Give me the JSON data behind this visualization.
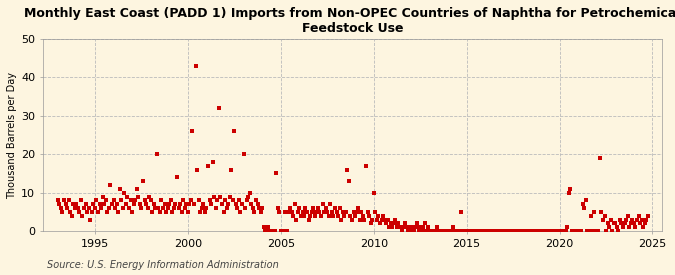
{
  "title": "Monthly East Coast (PADD 1) Imports from Non-OPEC Countries of Naphtha for Petrochemical\nFeedstock Use",
  "ylabel": "Thousand Barrels per Day",
  "source": "Source: U.S. Energy Information Administration",
  "background_color": "#fdf5e0",
  "marker_color": "#cc0000",
  "xlim": [
    1992.2,
    2025.5
  ],
  "ylim": [
    0,
    50
  ],
  "yticks": [
    0,
    10,
    20,
    30,
    40,
    50
  ],
  "xticks": [
    1995,
    2000,
    2005,
    2010,
    2015,
    2020,
    2025
  ],
  "data": [
    [
      1993.0,
      8
    ],
    [
      1993.08,
      7
    ],
    [
      1993.17,
      6
    ],
    [
      1993.25,
      5
    ],
    [
      1993.33,
      8
    ],
    [
      1993.42,
      7
    ],
    [
      1993.5,
      6
    ],
    [
      1993.58,
      8
    ],
    [
      1993.67,
      5
    ],
    [
      1993.75,
      4
    ],
    [
      1993.83,
      7
    ],
    [
      1993.92,
      6
    ],
    [
      1994.0,
      7
    ],
    [
      1994.08,
      6
    ],
    [
      1994.17,
      5
    ],
    [
      1994.25,
      8
    ],
    [
      1994.33,
      4
    ],
    [
      1994.42,
      6
    ],
    [
      1994.5,
      7
    ],
    [
      1994.58,
      5
    ],
    [
      1994.67,
      6
    ],
    [
      1994.75,
      3
    ],
    [
      1994.83,
      5
    ],
    [
      1994.92,
      7
    ],
    [
      1995.0,
      6
    ],
    [
      1995.08,
      8
    ],
    [
      1995.17,
      5
    ],
    [
      1995.25,
      7
    ],
    [
      1995.33,
      6
    ],
    [
      1995.42,
      9
    ],
    [
      1995.5,
      7
    ],
    [
      1995.58,
      8
    ],
    [
      1995.67,
      5
    ],
    [
      1995.75,
      6
    ],
    [
      1995.83,
      12
    ],
    [
      1995.92,
      7
    ],
    [
      1996.0,
      8
    ],
    [
      1996.08,
      6
    ],
    [
      1996.17,
      7
    ],
    [
      1996.25,
      5
    ],
    [
      1996.33,
      11
    ],
    [
      1996.42,
      8
    ],
    [
      1996.5,
      6
    ],
    [
      1996.58,
      10
    ],
    [
      1996.67,
      7
    ],
    [
      1996.75,
      9
    ],
    [
      1996.83,
      6
    ],
    [
      1996.92,
      8
    ],
    [
      1997.0,
      5
    ],
    [
      1997.08,
      7
    ],
    [
      1997.17,
      8
    ],
    [
      1997.25,
      11
    ],
    [
      1997.33,
      9
    ],
    [
      1997.42,
      7
    ],
    [
      1997.5,
      6
    ],
    [
      1997.58,
      13
    ],
    [
      1997.67,
      8
    ],
    [
      1997.75,
      7
    ],
    [
      1997.83,
      6
    ],
    [
      1997.92,
      9
    ],
    [
      1998.0,
      8
    ],
    [
      1998.08,
      5
    ],
    [
      1998.17,
      7
    ],
    [
      1998.25,
      6
    ],
    [
      1998.33,
      20
    ],
    [
      1998.42,
      6
    ],
    [
      1998.5,
      5
    ],
    [
      1998.58,
      8
    ],
    [
      1998.67,
      6
    ],
    [
      1998.75,
      7
    ],
    [
      1998.83,
      5
    ],
    [
      1998.92,
      6
    ],
    [
      1999.0,
      7
    ],
    [
      1999.08,
      8
    ],
    [
      1999.17,
      5
    ],
    [
      1999.25,
      6
    ],
    [
      1999.33,
      7
    ],
    [
      1999.42,
      14
    ],
    [
      1999.5,
      6
    ],
    [
      1999.58,
      7
    ],
    [
      1999.67,
      5
    ],
    [
      1999.75,
      8
    ],
    [
      1999.83,
      6
    ],
    [
      1999.92,
      7
    ],
    [
      2000.0,
      5
    ],
    [
      2000.08,
      7
    ],
    [
      2000.17,
      8
    ],
    [
      2000.25,
      26
    ],
    [
      2000.33,
      7
    ],
    [
      2000.42,
      43
    ],
    [
      2000.5,
      16
    ],
    [
      2000.58,
      8
    ],
    [
      2000.67,
      5
    ],
    [
      2000.75,
      6
    ],
    [
      2000.83,
      7
    ],
    [
      2000.92,
      5
    ],
    [
      2001.0,
      6
    ],
    [
      2001.08,
      17
    ],
    [
      2001.17,
      8
    ],
    [
      2001.25,
      7
    ],
    [
      2001.33,
      18
    ],
    [
      2001.42,
      9
    ],
    [
      2001.5,
      6
    ],
    [
      2001.58,
      8
    ],
    [
      2001.67,
      32
    ],
    [
      2001.75,
      9
    ],
    [
      2001.83,
      7
    ],
    [
      2001.92,
      5
    ],
    [
      2002.0,
      8
    ],
    [
      2002.08,
      6
    ],
    [
      2002.17,
      7
    ],
    [
      2002.25,
      9
    ],
    [
      2002.33,
      16
    ],
    [
      2002.42,
      8
    ],
    [
      2002.5,
      26
    ],
    [
      2002.58,
      7
    ],
    [
      2002.67,
      6
    ],
    [
      2002.75,
      8
    ],
    [
      2002.83,
      5
    ],
    [
      2002.92,
      7
    ],
    [
      2003.0,
      20
    ],
    [
      2003.08,
      6
    ],
    [
      2003.17,
      8
    ],
    [
      2003.25,
      9
    ],
    [
      2003.33,
      10
    ],
    [
      2003.42,
      7
    ],
    [
      2003.5,
      6
    ],
    [
      2003.58,
      5
    ],
    [
      2003.67,
      8
    ],
    [
      2003.75,
      7
    ],
    [
      2003.83,
      6
    ],
    [
      2003.92,
      5
    ],
    [
      2004.0,
      6
    ],
    [
      2004.08,
      1
    ],
    [
      2004.17,
      0
    ],
    [
      2004.25,
      0
    ],
    [
      2004.33,
      1
    ],
    [
      2004.42,
      0
    ],
    [
      2004.5,
      0
    ],
    [
      2004.58,
      0
    ],
    [
      2004.67,
      0
    ],
    [
      2004.75,
      15
    ],
    [
      2004.83,
      6
    ],
    [
      2004.92,
      5
    ],
    [
      2005.0,
      0
    ],
    [
      2005.08,
      0
    ],
    [
      2005.17,
      0
    ],
    [
      2005.25,
      5
    ],
    [
      2005.33,
      0
    ],
    [
      2005.42,
      5
    ],
    [
      2005.5,
      6
    ],
    [
      2005.58,
      5
    ],
    [
      2005.67,
      4
    ],
    [
      2005.75,
      7
    ],
    [
      2005.83,
      3
    ],
    [
      2005.92,
      5
    ],
    [
      2006.0,
      6
    ],
    [
      2006.08,
      4
    ],
    [
      2006.17,
      5
    ],
    [
      2006.25,
      4
    ],
    [
      2006.33,
      6
    ],
    [
      2006.42,
      5
    ],
    [
      2006.5,
      3
    ],
    [
      2006.58,
      4
    ],
    [
      2006.67,
      5
    ],
    [
      2006.75,
      6
    ],
    [
      2006.83,
      4
    ],
    [
      2006.92,
      5
    ],
    [
      2007.0,
      6
    ],
    [
      2007.08,
      5
    ],
    [
      2007.17,
      4
    ],
    [
      2007.25,
      7
    ],
    [
      2007.33,
      5
    ],
    [
      2007.42,
      6
    ],
    [
      2007.5,
      5
    ],
    [
      2007.58,
      4
    ],
    [
      2007.67,
      7
    ],
    [
      2007.75,
      5
    ],
    [
      2007.83,
      4
    ],
    [
      2007.92,
      6
    ],
    [
      2008.0,
      5
    ],
    [
      2008.08,
      4
    ],
    [
      2008.17,
      6
    ],
    [
      2008.25,
      3
    ],
    [
      2008.33,
      5
    ],
    [
      2008.42,
      4
    ],
    [
      2008.5,
      5
    ],
    [
      2008.58,
      16
    ],
    [
      2008.67,
      13
    ],
    [
      2008.75,
      4
    ],
    [
      2008.83,
      3
    ],
    [
      2008.92,
      5
    ],
    [
      2009.0,
      4
    ],
    [
      2009.08,
      5
    ],
    [
      2009.17,
      6
    ],
    [
      2009.25,
      3
    ],
    [
      2009.33,
      5
    ],
    [
      2009.42,
      4
    ],
    [
      2009.5,
      3
    ],
    [
      2009.58,
      17
    ],
    [
      2009.67,
      5
    ],
    [
      2009.75,
      4
    ],
    [
      2009.83,
      2
    ],
    [
      2009.92,
      3
    ],
    [
      2010.0,
      10
    ],
    [
      2010.08,
      5
    ],
    [
      2010.17,
      3
    ],
    [
      2010.25,
      4
    ],
    [
      2010.33,
      2
    ],
    [
      2010.42,
      3
    ],
    [
      2010.5,
      4
    ],
    [
      2010.58,
      3
    ],
    [
      2010.67,
      2
    ],
    [
      2010.75,
      3
    ],
    [
      2010.83,
      1
    ],
    [
      2010.92,
      2
    ],
    [
      2011.0,
      1
    ],
    [
      2011.08,
      2
    ],
    [
      2011.17,
      3
    ],
    [
      2011.25,
      1
    ],
    [
      2011.33,
      2
    ],
    [
      2011.42,
      1
    ],
    [
      2011.5,
      0
    ],
    [
      2011.58,
      1
    ],
    [
      2011.67,
      2
    ],
    [
      2011.75,
      1
    ],
    [
      2011.83,
      0
    ],
    [
      2011.92,
      1
    ],
    [
      2012.0,
      0
    ],
    [
      2012.08,
      1
    ],
    [
      2012.17,
      0
    ],
    [
      2012.25,
      1
    ],
    [
      2012.33,
      2
    ],
    [
      2012.42,
      0
    ],
    [
      2012.5,
      1
    ],
    [
      2012.58,
      0
    ],
    [
      2012.67,
      1
    ],
    [
      2012.75,
      2
    ],
    [
      2012.83,
      0
    ],
    [
      2012.92,
      1
    ],
    [
      2013.0,
      0
    ],
    [
      2013.08,
      0
    ],
    [
      2013.17,
      0
    ],
    [
      2013.25,
      0
    ],
    [
      2013.33,
      0
    ],
    [
      2013.42,
      1
    ],
    [
      2013.5,
      0
    ],
    [
      2013.58,
      0
    ],
    [
      2013.67,
      0
    ],
    [
      2013.75,
      0
    ],
    [
      2013.83,
      0
    ],
    [
      2013.92,
      0
    ],
    [
      2014.0,
      0
    ],
    [
      2014.08,
      0
    ],
    [
      2014.17,
      0
    ],
    [
      2014.25,
      1
    ],
    [
      2014.33,
      0
    ],
    [
      2014.42,
      0
    ],
    [
      2014.5,
      0
    ],
    [
      2014.58,
      0
    ],
    [
      2014.67,
      5
    ],
    [
      2014.75,
      0
    ],
    [
      2014.83,
      0
    ],
    [
      2014.92,
      0
    ],
    [
      2015.0,
      0
    ],
    [
      2015.08,
      0
    ],
    [
      2015.17,
      0
    ],
    [
      2015.25,
      0
    ],
    [
      2015.33,
      0
    ],
    [
      2015.42,
      0
    ],
    [
      2015.5,
      0
    ],
    [
      2015.58,
      0
    ],
    [
      2015.67,
      0
    ],
    [
      2015.75,
      0
    ],
    [
      2015.83,
      0
    ],
    [
      2015.92,
      0
    ],
    [
      2016.0,
      0
    ],
    [
      2016.08,
      0
    ],
    [
      2016.17,
      0
    ],
    [
      2016.25,
      0
    ],
    [
      2016.33,
      0
    ],
    [
      2016.42,
      0
    ],
    [
      2016.5,
      0
    ],
    [
      2016.58,
      0
    ],
    [
      2016.67,
      0
    ],
    [
      2016.75,
      0
    ],
    [
      2016.83,
      0
    ],
    [
      2016.92,
      0
    ],
    [
      2017.0,
      0
    ],
    [
      2017.08,
      0
    ],
    [
      2017.17,
      0
    ],
    [
      2017.25,
      0
    ],
    [
      2017.33,
      0
    ],
    [
      2017.42,
      0
    ],
    [
      2017.5,
      0
    ],
    [
      2017.58,
      0
    ],
    [
      2017.67,
      0
    ],
    [
      2017.75,
      0
    ],
    [
      2017.83,
      0
    ],
    [
      2017.92,
      0
    ],
    [
      2018.0,
      0
    ],
    [
      2018.08,
      0
    ],
    [
      2018.17,
      0
    ],
    [
      2018.25,
      0
    ],
    [
      2018.33,
      0
    ],
    [
      2018.42,
      0
    ],
    [
      2018.5,
      0
    ],
    [
      2018.58,
      0
    ],
    [
      2018.67,
      0
    ],
    [
      2018.75,
      0
    ],
    [
      2018.83,
      0
    ],
    [
      2018.92,
      0
    ],
    [
      2019.0,
      0
    ],
    [
      2019.08,
      0
    ],
    [
      2019.17,
      0
    ],
    [
      2019.25,
      0
    ],
    [
      2019.33,
      0
    ],
    [
      2019.42,
      0
    ],
    [
      2019.5,
      0
    ],
    [
      2019.58,
      0
    ],
    [
      2019.67,
      0
    ],
    [
      2019.75,
      0
    ],
    [
      2019.83,
      0
    ],
    [
      2019.92,
      0
    ],
    [
      2020.0,
      0
    ],
    [
      2020.08,
      0
    ],
    [
      2020.17,
      0
    ],
    [
      2020.25,
      0
    ],
    [
      2020.33,
      0
    ],
    [
      2020.42,
      1
    ],
    [
      2020.5,
      10
    ],
    [
      2020.58,
      11
    ],
    [
      2020.67,
      0
    ],
    [
      2020.75,
      0
    ],
    [
      2020.83,
      0
    ],
    [
      2020.92,
      0
    ],
    [
      2021.0,
      0
    ],
    [
      2021.08,
      0
    ],
    [
      2021.17,
      0
    ],
    [
      2021.25,
      7
    ],
    [
      2021.33,
      6
    ],
    [
      2021.42,
      8
    ],
    [
      2021.5,
      0
    ],
    [
      2021.58,
      0
    ],
    [
      2021.67,
      4
    ],
    [
      2021.75,
      0
    ],
    [
      2021.83,
      5
    ],
    [
      2021.92,
      0
    ],
    [
      2022.0,
      0
    ],
    [
      2022.08,
      0
    ],
    [
      2022.17,
      19
    ],
    [
      2022.25,
      5
    ],
    [
      2022.33,
      3
    ],
    [
      2022.42,
      4
    ],
    [
      2022.5,
      0
    ],
    [
      2022.58,
      2
    ],
    [
      2022.67,
      1
    ],
    [
      2022.75,
      3
    ],
    [
      2022.83,
      0
    ],
    [
      2022.92,
      2
    ],
    [
      2023.0,
      2
    ],
    [
      2023.08,
      1
    ],
    [
      2023.17,
      0
    ],
    [
      2023.25,
      3
    ],
    [
      2023.33,
      2
    ],
    [
      2023.42,
      1
    ],
    [
      2023.5,
      2
    ],
    [
      2023.58,
      3
    ],
    [
      2023.67,
      4
    ],
    [
      2023.75,
      1
    ],
    [
      2023.83,
      2
    ],
    [
      2023.92,
      3
    ],
    [
      2024.0,
      2
    ],
    [
      2024.08,
      1
    ],
    [
      2024.17,
      3
    ],
    [
      2024.25,
      4
    ],
    [
      2024.33,
      2
    ],
    [
      2024.42,
      3
    ],
    [
      2024.5,
      1
    ],
    [
      2024.58,
      2
    ],
    [
      2024.67,
      3
    ],
    [
      2024.75,
      4
    ]
  ]
}
